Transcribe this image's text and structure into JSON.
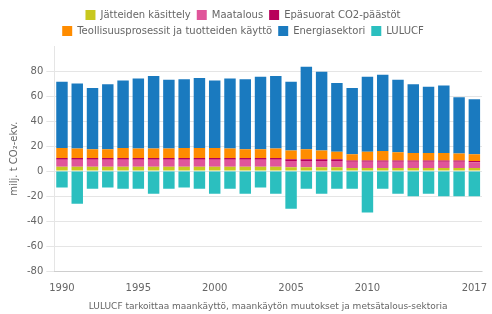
{
  "chart_data": {
    "type": "bar",
    "stacked": true,
    "ylabel": "milj. t CO₂-ekv.",
    "xlabel": "LULUCF tarkoittaa maankäyttö, maankäytön muutokset ja metsätalous-sektoria",
    "categories": [
      1990,
      null,
      null,
      null,
      null,
      1995,
      null,
      null,
      null,
      null,
      2000,
      null,
      null,
      null,
      null,
      2005,
      null,
      null,
      null,
      null,
      2010,
      null,
      null,
      null,
      null,
      null,
      null,
      2017
    ],
    "series": [
      {
        "name": "Jätteiden käsittely",
        "color": "#c8c81e",
        "values": [
          3.5,
          3.5,
          3.5,
          3.5,
          3.5,
          3.5,
          3.5,
          3.5,
          3.5,
          3.5,
          3.5,
          3.5,
          3.5,
          3.5,
          3.5,
          3.0,
          3.0,
          3.0,
          3.0,
          2.5,
          2.5,
          2.5,
          2.5,
          2.5,
          2.5,
          2.5,
          2.5,
          2.5
        ]
      },
      {
        "name": "Maatalous",
        "color": "#e0559a",
        "values": [
          5.5,
          5.5,
          5.5,
          5.5,
          5.5,
          5.5,
          5.5,
          5.5,
          5.5,
          5.5,
          5.5,
          5.5,
          5.5,
          5.5,
          5.5,
          5.0,
          5.0,
          5.0,
          5.0,
          5.0,
          5.0,
          5.0,
          5.0,
          5.0,
          5.0,
          5.0,
          5.0,
          4.5
        ]
      },
      {
        "name": "Epäsuorat CO2-päästöt",
        "color": "#b8005a",
        "values": [
          1.5,
          1.5,
          1.5,
          1.5,
          1.5,
          1.5,
          1.5,
          1.5,
          1.5,
          1.5,
          1.5,
          1.5,
          1.5,
          1.5,
          1.5,
          1.5,
          1.5,
          1.5,
          1.5,
          1.0,
          1.0,
          1.0,
          1.0,
          1.0,
          1.0,
          1.0,
          1.0,
          1.0
        ]
      },
      {
        "name": "Teollisuusprosessit ja tuotteiden käyttö",
        "color": "#ff8c00",
        "values": [
          8.0,
          7.5,
          7.0,
          7.0,
          8.0,
          7.5,
          7.5,
          7.5,
          8.0,
          8.0,
          8.0,
          7.5,
          7.0,
          7.0,
          7.5,
          7.0,
          8.0,
          7.0,
          6.0,
          5.0,
          7.0,
          7.5,
          6.5,
          6.0,
          6.0,
          6.0,
          5.5,
          5.5
        ]
      },
      {
        "name": "Energiasektori",
        "color": "#1a7abf",
        "values": [
          53,
          52,
          49,
          52,
          54,
          56,
          58,
          55,
          55,
          56,
          54,
          56,
          56,
          58,
          58,
          55,
          66,
          63,
          55,
          53,
          60,
          61,
          58,
          55,
          53,
          54,
          45,
          44
        ]
      },
      {
        "name": "LULUCF",
        "color": "#2bbfbf",
        "values": [
          -13,
          -26,
          -14,
          -13,
          -14,
          -14,
          -18,
          -14,
          -13,
          -14,
          -18,
          -14,
          -18,
          -13,
          -18,
          -30,
          -14,
          -18,
          -14,
          -14,
          -33,
          -14,
          -18,
          -20,
          -18,
          -20,
          -20,
          -20
        ]
      }
    ],
    "ylim": [
      -80,
      100
    ],
    "yticks": [
      -80,
      -60,
      -40,
      -20,
      0,
      20,
      40,
      60,
      80
    ],
    "grid": true,
    "legend": "top"
  }
}
